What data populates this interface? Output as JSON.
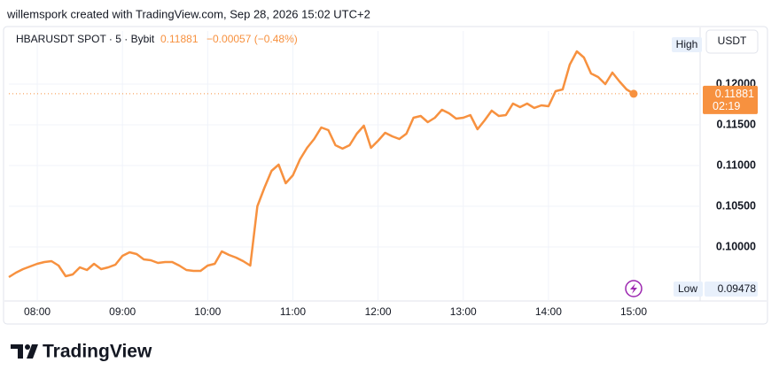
{
  "header": "willemspork created with TradingView.com, Sep 28, 2026 15:02 UTC+2",
  "brand": "TradingView",
  "chart_data": {
    "type": "line",
    "symbol": "HBARUSDT SPOT · 5 · Bybit",
    "change": "−0.00057 (−0.48%)",
    "currency": "USDT",
    "high_label": "High",
    "low_label": "Low",
    "low_value": 0.09478,
    "countdown": "02:19",
    "categories": [
      null,
      null,
      null,
      null,
      "08:00",
      null,
      null,
      null,
      null,
      null,
      null,
      null,
      null,
      null,
      null,
      null,
      "09:00",
      null,
      null,
      null,
      null,
      null,
      null,
      null,
      null,
      null,
      null,
      null,
      "10:00",
      null,
      null,
      null,
      null,
      null,
      null,
      null,
      null,
      null,
      null,
      null,
      "11:00",
      null,
      null,
      null,
      null,
      null,
      null,
      null,
      null,
      null,
      null,
      null,
      "12:00",
      null,
      null,
      null,
      null,
      null,
      null,
      null,
      null,
      null,
      null,
      null,
      "13:00",
      null,
      null,
      null,
      null,
      null,
      null,
      null,
      null,
      null,
      null,
      null,
      "14:00",
      null,
      null,
      null,
      null,
      null,
      null,
      null,
      null,
      null,
      null,
      null,
      "15:00"
    ],
    "series": [
      {
        "color": "#f7913f",
        "values": [
          0.0963,
          0.09685,
          0.09728,
          0.09761,
          0.09793,
          0.09815,
          0.09826,
          0.09772,
          0.09641,
          0.09663,
          0.0975,
          0.09717,
          0.09793,
          0.09728,
          0.0975,
          0.09783,
          0.09891,
          0.09935,
          0.09913,
          0.09848,
          0.09837,
          0.09804,
          0.09815,
          0.09815,
          0.09772,
          0.09717,
          0.09707,
          0.09707,
          0.09772,
          0.09793,
          0.09946,
          0.09902,
          0.0987,
          0.09826,
          0.09772,
          0.105,
          0.10728,
          0.10935,
          0.11011,
          0.10783,
          0.1088,
          0.11076,
          0.11217,
          0.11326,
          0.11467,
          0.11435,
          0.1125,
          0.11207,
          0.1125,
          0.11391,
          0.11489,
          0.11217,
          0.11304,
          0.11402,
          0.11359,
          0.11326,
          0.11391,
          0.11587,
          0.11609,
          0.11533,
          0.11587,
          0.11685,
          0.11641,
          0.11576,
          0.11587,
          0.1162,
          0.11446,
          0.11554,
          0.11674,
          0.11609,
          0.1162,
          0.11761,
          0.11717,
          0.11761,
          0.11707,
          0.11739,
          0.11728,
          0.11913,
          0.11935,
          0.12239,
          0.12402,
          0.12326,
          0.1213,
          0.12087,
          0.12,
          0.12141,
          0.12033,
          0.11935,
          0.11881
        ]
      }
    ],
    "ylim": [
      0.09337,
      0.12652
    ],
    "yticks": [
      {
        "value": 0.1,
        "label": "0.10000"
      },
      {
        "value": 0.105,
        "label": "0.10500"
      },
      {
        "value": 0.11,
        "label": "0.11000"
      },
      {
        "value": 0.115,
        "label": "0.11500"
      },
      {
        "value": 0.12,
        "label": "0.12000"
      }
    ],
    "grid": true
  }
}
